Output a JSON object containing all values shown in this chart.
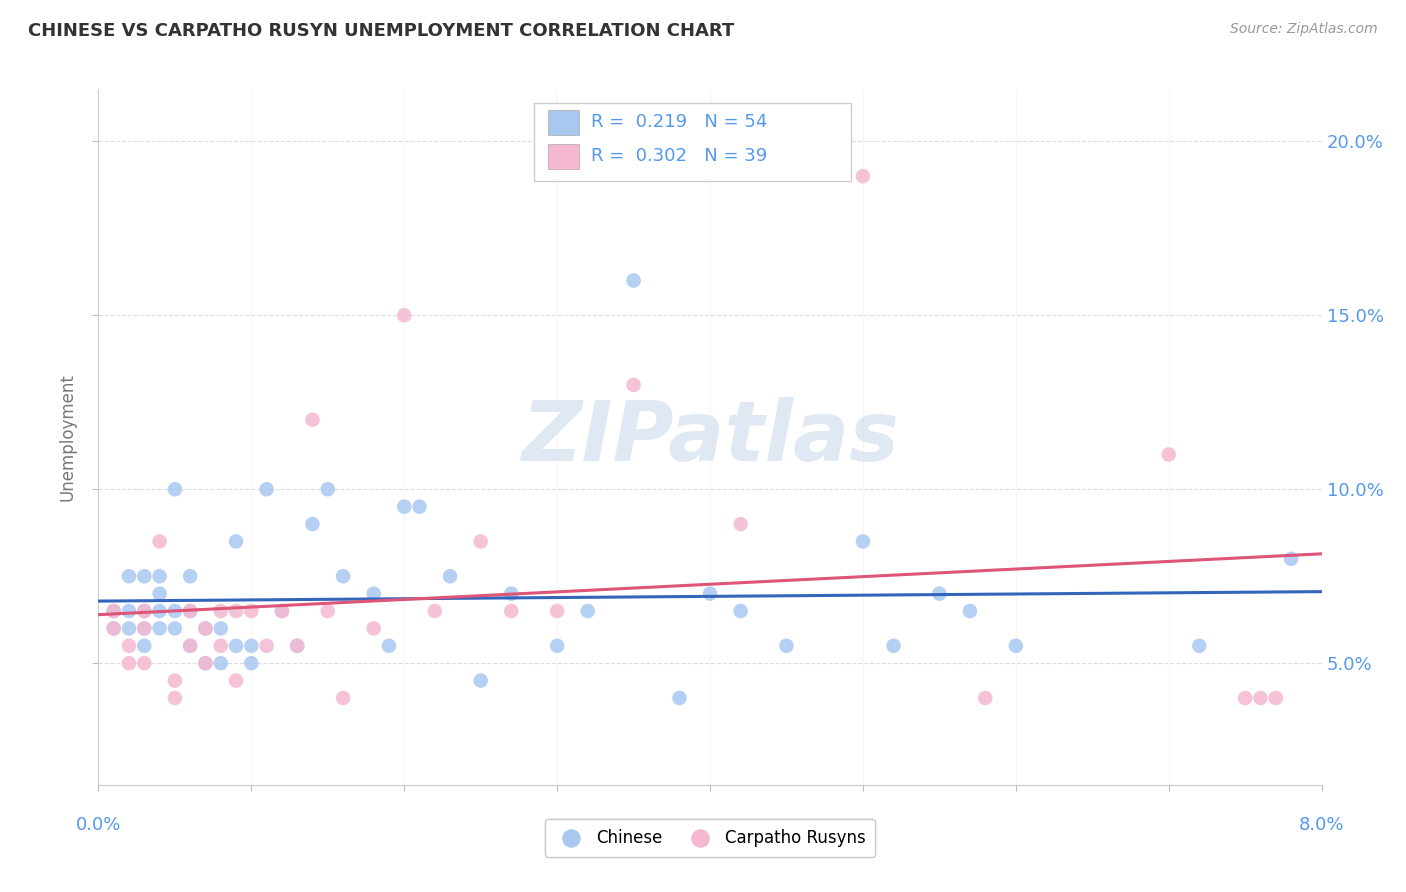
{
  "title": "CHINESE VS CARPATHO RUSYN UNEMPLOYMENT CORRELATION CHART",
  "source": "Source: ZipAtlas.com",
  "ylabel": "Unemployment",
  "xlim": [
    0.0,
    0.08
  ],
  "ylim": [
    0.015,
    0.215
  ],
  "yticks": [
    0.05,
    0.1,
    0.15,
    0.2
  ],
  "ytick_labels": [
    "5.0%",
    "10.0%",
    "15.0%",
    "20.0%"
  ],
  "legend_R1": "0.219",
  "legend_N1": "54",
  "legend_R2": "0.302",
  "legend_N2": "39",
  "blue_scatter": "#A8C8F0",
  "pink_scatter": "#F5B8D0",
  "blue_line": "#3366BB",
  "pink_line": "#DD5577",
  "watermark_color": "#C8D8EA",
  "title_color": "#333333",
  "source_color": "#999999",
  "ylabel_color": "#777777",
  "tick_label_color": "#5599EE",
  "grid_color": "#DDDDDD",
  "chinese_x": [
    0.001,
    0.001,
    0.002,
    0.002,
    0.002,
    0.003,
    0.003,
    0.003,
    0.003,
    0.004,
    0.004,
    0.004,
    0.004,
    0.005,
    0.005,
    0.005,
    0.006,
    0.006,
    0.006,
    0.007,
    0.007,
    0.008,
    0.008,
    0.009,
    0.009,
    0.01,
    0.01,
    0.011,
    0.012,
    0.013,
    0.014,
    0.015,
    0.016,
    0.018,
    0.019,
    0.02,
    0.021,
    0.023,
    0.025,
    0.027,
    0.03,
    0.032,
    0.035,
    0.038,
    0.04,
    0.042,
    0.045,
    0.05,
    0.052,
    0.055,
    0.057,
    0.06,
    0.072,
    0.078
  ],
  "chinese_y": [
    0.065,
    0.06,
    0.075,
    0.065,
    0.06,
    0.075,
    0.065,
    0.06,
    0.055,
    0.075,
    0.07,
    0.065,
    0.06,
    0.1,
    0.065,
    0.06,
    0.075,
    0.065,
    0.055,
    0.06,
    0.05,
    0.06,
    0.05,
    0.085,
    0.055,
    0.055,
    0.05,
    0.1,
    0.065,
    0.055,
    0.09,
    0.1,
    0.075,
    0.07,
    0.055,
    0.095,
    0.095,
    0.075,
    0.045,
    0.07,
    0.055,
    0.065,
    0.16,
    0.04,
    0.07,
    0.065,
    0.055,
    0.085,
    0.055,
    0.07,
    0.065,
    0.055,
    0.055,
    0.08
  ],
  "rusyn_x": [
    0.001,
    0.001,
    0.002,
    0.002,
    0.003,
    0.003,
    0.003,
    0.004,
    0.005,
    0.005,
    0.006,
    0.006,
    0.007,
    0.007,
    0.008,
    0.008,
    0.009,
    0.009,
    0.01,
    0.011,
    0.012,
    0.013,
    0.014,
    0.015,
    0.016,
    0.018,
    0.02,
    0.022,
    0.025,
    0.027,
    0.03,
    0.035,
    0.042,
    0.05,
    0.058,
    0.07,
    0.075,
    0.076,
    0.077
  ],
  "rusyn_y": [
    0.065,
    0.06,
    0.055,
    0.05,
    0.065,
    0.06,
    0.05,
    0.085,
    0.045,
    0.04,
    0.065,
    0.055,
    0.06,
    0.05,
    0.065,
    0.055,
    0.045,
    0.065,
    0.065,
    0.055,
    0.065,
    0.055,
    0.12,
    0.065,
    0.04,
    0.06,
    0.15,
    0.065,
    0.085,
    0.065,
    0.065,
    0.13,
    0.09,
    0.19,
    0.04,
    0.11,
    0.04,
    0.04,
    0.04
  ]
}
